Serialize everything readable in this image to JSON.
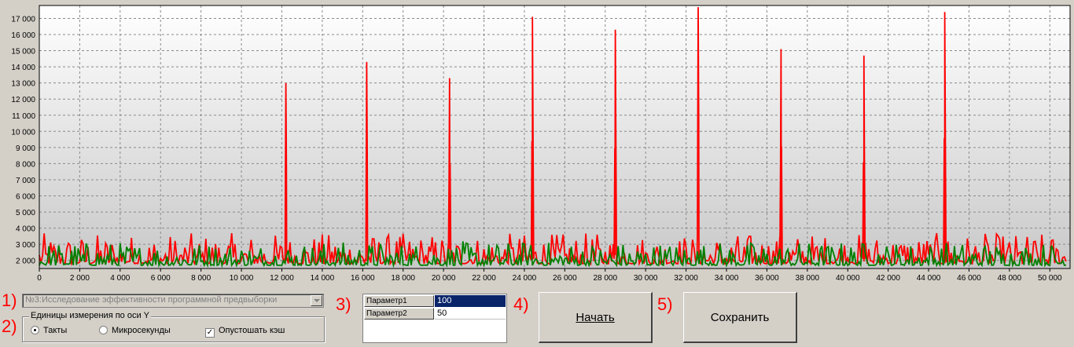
{
  "chart_data": {
    "type": "line",
    "xlim": [
      0,
      51000
    ],
    "ylim": [
      1500,
      17800
    ],
    "x_ticks": [
      0,
      2000,
      4000,
      6000,
      8000,
      10000,
      12000,
      14000,
      16000,
      18000,
      20000,
      22000,
      24000,
      26000,
      28000,
      30000,
      32000,
      34000,
      36000,
      38000,
      40000,
      42000,
      44000,
      46000,
      48000,
      50000
    ],
    "x_tick_labels": [
      "0",
      "2 000",
      "4 000",
      "6 000",
      "8 000",
      "10 000",
      "12 000",
      "14 000",
      "16 000",
      "18 000",
      "20 000",
      "22 000",
      "24 000",
      "26 000",
      "28 000",
      "30 000",
      "32 000",
      "34 000",
      "36 000",
      "38 000",
      "40 000",
      "42 000",
      "44 000",
      "46 000",
      "48 000",
      "50 000"
    ],
    "y_ticks": [
      2000,
      3000,
      4000,
      5000,
      6000,
      7000,
      8000,
      9000,
      10000,
      11000,
      12000,
      13000,
      14000,
      15000,
      16000,
      17000
    ],
    "y_tick_labels": [
      "2 000",
      "3 000",
      "4 000",
      "5 000",
      "6 000",
      "7 000",
      "8 000",
      "9 000",
      "10 000",
      "11 000",
      "12 000",
      "13 000",
      "14 000",
      "15 000",
      "16 000",
      "17 000"
    ],
    "grid": true,
    "series": [
      {
        "color": "#ff0000",
        "baseline": [
          1800,
          2300
        ],
        "spikes": [
          {
            "x": 12200,
            "y": 13000
          },
          {
            "x": 16200,
            "y": 14300
          },
          {
            "x": 20300,
            "y": 13300
          },
          {
            "x": 24400,
            "y": 17100
          },
          {
            "x": 28500,
            "y": 16300
          },
          {
            "x": 32600,
            "y": 17700
          },
          {
            "x": 36700,
            "y": 15100
          },
          {
            "x": 40800,
            "y": 14700
          },
          {
            "x": 44800,
            "y": 17400
          }
        ]
      },
      {
        "color": "#008000",
        "baseline": [
          1700,
          2100
        ],
        "spikes": []
      }
    ]
  },
  "markers": [
    "1)",
    "2)",
    "3)",
    "4)",
    "5)"
  ],
  "test_select": {
    "value": "№3:Исследование эффективности программной предвыборки",
    "disabled": true
  },
  "y_units": {
    "title": "Единицы измерения по оси Y",
    "options": [
      {
        "label": "Такты",
        "selected": true
      },
      {
        "label": "Микросекунды",
        "selected": false
      }
    ],
    "flush_cache": {
      "label": "Опустошать кэш",
      "checked": true
    }
  },
  "params": [
    {
      "name": "Параметр1",
      "value": "100",
      "selected": true
    },
    {
      "name": "Параметр2",
      "value": "50",
      "selected": false
    }
  ],
  "buttons": {
    "start": "Начать",
    "save": "Сохранить"
  },
  "colors": {
    "accent_selection": "#0a246a",
    "marker": "#ff0000"
  }
}
